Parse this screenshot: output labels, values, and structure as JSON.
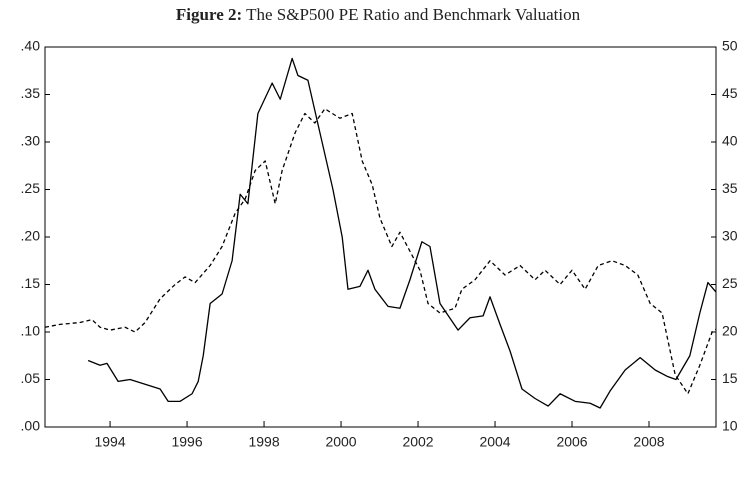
{
  "chart_data": {
    "type": "line",
    "title_label": "Figure 2:",
    "title": "The S&P500 PE Ratio and Benchmark Valuation",
    "xlim": [
      1992.31,
      2009.74
    ],
    "xticks": [
      1994,
      1996,
      1998,
      2000,
      2002,
      2004,
      2006,
      2008
    ],
    "ylim": [
      0,
      0.4
    ],
    "yticks": [
      {
        "value": 0,
        "label": ".00"
      },
      {
        "value": 0.05,
        "label": ".05"
      },
      {
        "value": 0.1,
        "label": ".10"
      },
      {
        "value": 0.15,
        "label": ".15"
      },
      {
        "value": 0.2,
        "label": ".20"
      },
      {
        "value": 0.25,
        "label": ".25"
      },
      {
        "value": 0.3,
        "label": ".30"
      },
      {
        "value": 0.35,
        "label": ".35"
      },
      {
        "value": 0.4,
        "label": ".40"
      }
    ],
    "y2lim": [
      10,
      50
    ],
    "y2ticks": [
      10,
      15,
      20,
      25,
      30,
      35,
      40,
      45,
      50
    ],
    "grid": false,
    "series": [
      {
        "color": "#000000",
        "linestyle": "solid",
        "axis": "y",
        "x": [
          1993.43,
          1993.74,
          1993.92,
          1994.21,
          1994.52,
          1994.91,
          1995.3,
          1995.51,
          1995.82,
          1996.13,
          1996.29,
          1996.42,
          1996.6,
          1996.91,
          1997.17,
          1997.38,
          1997.58,
          1997.84,
          1998.21,
          1998.42,
          1998.73,
          1998.88,
          1999.14,
          1999.45,
          1999.79,
          2000.03,
          2000.18,
          2000.49,
          2000.7,
          2000.88,
          2001.22,
          2001.53,
          2001.79,
          2002.1,
          2002.31,
          2002.57,
          2003.04,
          2003.35,
          2003.69,
          2003.87,
          2004.13,
          2004.39,
          2004.7,
          2005.04,
          2005.38,
          2005.69,
          2006.08,
          2006.47,
          2006.73,
          2006.99,
          2007.38,
          2007.77,
          2008.16,
          2008.49,
          2008.7,
          2009.06,
          2009.32,
          2009.53,
          2009.74
        ],
        "values": [
          0.07,
          0.065,
          0.067,
          0.048,
          0.05,
          0.045,
          0.04,
          0.027,
          0.027,
          0.035,
          0.048,
          0.075,
          0.13,
          0.14,
          0.175,
          0.245,
          0.235,
          0.33,
          0.362,
          0.345,
          0.388,
          0.37,
          0.365,
          0.31,
          0.25,
          0.2,
          0.145,
          0.148,
          0.165,
          0.145,
          0.127,
          0.125,
          0.155,
          0.195,
          0.19,
          0.13,
          0.102,
          0.115,
          0.117,
          0.137,
          0.108,
          0.08,
          0.04,
          0.03,
          0.022,
          0.035,
          0.027,
          0.025,
          0.02,
          0.038,
          0.06,
          0.073,
          0.06,
          0.053,
          0.05,
          0.075,
          0.12,
          0.152,
          0.142
        ]
      },
      {
        "color": "#000000",
        "linestyle": "dashed",
        "axis": "y2",
        "x": [
          1992.31,
          1992.7,
          1993.22,
          1993.53,
          1993.74,
          1994.0,
          1994.39,
          1994.65,
          1994.91,
          1995.3,
          1995.69,
          1995.95,
          1996.21,
          1996.6,
          1996.91,
          1997.25,
          1997.51,
          1997.77,
          1998.03,
          1998.29,
          1998.47,
          1998.81,
          1999.06,
          1999.32,
          1999.58,
          1999.97,
          2000.29,
          2000.55,
          2000.81,
          2001.01,
          2001.32,
          2001.53,
          2001.79,
          2002.05,
          2002.26,
          2002.57,
          2002.96,
          2003.14,
          2003.48,
          2003.87,
          2004.26,
          2004.65,
          2005.04,
          2005.3,
          2005.69,
          2006.0,
          2006.34,
          2006.68,
          2007.04,
          2007.38,
          2007.71,
          2008.03,
          2008.34,
          2008.68,
          2009.01,
          2009.32,
          2009.64,
          2009.74
        ],
        "values": [
          20.5,
          20.8,
          21.0,
          21.3,
          20.5,
          20.2,
          20.5,
          20.0,
          21.0,
          23.5,
          25.0,
          25.8,
          25.2,
          27.0,
          29.0,
          32.5,
          34.0,
          37.0,
          38.0,
          33.5,
          37.0,
          41.0,
          43.0,
          42.0,
          43.5,
          42.5,
          43.0,
          38.0,
          35.5,
          32.0,
          29.0,
          30.5,
          28.5,
          26.5,
          23.0,
          22.0,
          22.5,
          24.5,
          25.5,
          27.5,
          26.0,
          27.0,
          25.5,
          26.5,
          25.0,
          26.5,
          24.5,
          27.0,
          27.5,
          27.0,
          26.0,
          23.0,
          22.0,
          15.5,
          13.5,
          16.5,
          20.0,
          20.3
        ]
      }
    ]
  }
}
